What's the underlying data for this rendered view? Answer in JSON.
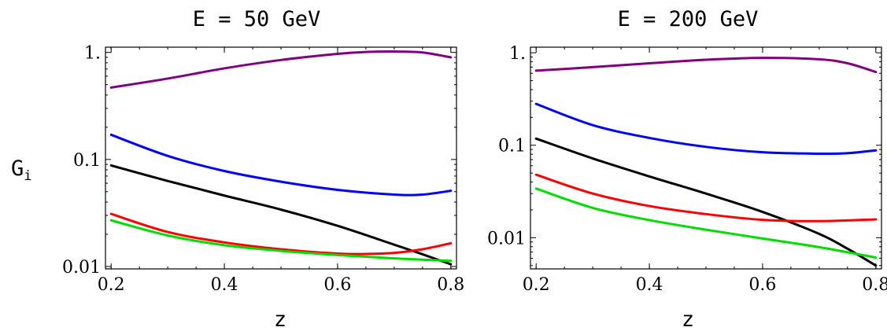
{
  "ylabel": "G",
  "ylabel_sub": "i",
  "chart_data": [
    {
      "type": "line",
      "title": "E = 50 GeV",
      "xlabel": "z",
      "ylabel": "Gi",
      "yscale": "log",
      "xlim": [
        0.19,
        0.81
      ],
      "ylim": [
        0.0095,
        1.12
      ],
      "xticks": [
        0.2,
        0.4,
        0.6,
        0.8
      ],
      "xtick_labels": [
        "0.2",
        "0.4",
        "0.6",
        "0.8"
      ],
      "yticks": [
        0.01,
        0.1,
        1.0
      ],
      "ytick_labels": [
        "0.01",
        "0.1",
        "1."
      ],
      "grid": false,
      "series": [
        {
          "color": "#800080",
          "x": [
            0.2,
            0.3,
            0.4,
            0.5,
            0.6,
            0.65,
            0.7,
            0.75,
            0.8
          ],
          "y": [
            0.47,
            0.57,
            0.71,
            0.85,
            0.97,
            1.01,
            1.02,
            1.0,
            0.9
          ]
        },
        {
          "color": "#0000ff",
          "x": [
            0.2,
            0.3,
            0.4,
            0.5,
            0.6,
            0.7,
            0.75,
            0.8
          ],
          "y": [
            0.17,
            0.108,
            0.078,
            0.062,
            0.052,
            0.047,
            0.047,
            0.051
          ]
        },
        {
          "color": "#000000",
          "x": [
            0.2,
            0.3,
            0.4,
            0.5,
            0.6,
            0.7,
            0.75,
            0.8
          ],
          "y": [
            0.088,
            0.063,
            0.046,
            0.034,
            0.024,
            0.016,
            0.013,
            0.0105
          ]
        },
        {
          "color": "#ff0000",
          "x": [
            0.2,
            0.3,
            0.4,
            0.5,
            0.6,
            0.65,
            0.7,
            0.75,
            0.8
          ],
          "y": [
            0.031,
            0.021,
            0.0168,
            0.0145,
            0.0132,
            0.0131,
            0.0134,
            0.0145,
            0.0165
          ]
        },
        {
          "color": "#00dd00",
          "x": [
            0.2,
            0.3,
            0.4,
            0.5,
            0.6,
            0.7,
            0.8
          ],
          "y": [
            0.027,
            0.0195,
            0.0158,
            0.014,
            0.0128,
            0.0119,
            0.0113
          ]
        }
      ]
    },
    {
      "type": "line",
      "title": "E = 200 GeV",
      "xlabel": "z",
      "ylabel": "",
      "yscale": "log",
      "xlim": [
        0.19,
        0.81
      ],
      "ylim": [
        0.0046,
        1.15
      ],
      "xticks": [
        0.2,
        0.4,
        0.6,
        0.8
      ],
      "xtick_labels": [
        "0.2",
        "0.4",
        "0.6",
        "0.8"
      ],
      "yticks": [
        0.01,
        0.1,
        1.0
      ],
      "ytick_labels": [
        "0.01",
        "0.1",
        "1."
      ],
      "grid": false,
      "series": [
        {
          "color": "#800080",
          "x": [
            0.2,
            0.3,
            0.4,
            0.5,
            0.6,
            0.7,
            0.75,
            0.8
          ],
          "y": [
            0.64,
            0.7,
            0.77,
            0.84,
            0.88,
            0.85,
            0.77,
            0.62
          ]
        },
        {
          "color": "#0000ff",
          "x": [
            0.2,
            0.3,
            0.4,
            0.5,
            0.6,
            0.7,
            0.75,
            0.8
          ],
          "y": [
            0.28,
            0.165,
            0.12,
            0.096,
            0.084,
            0.081,
            0.082,
            0.088
          ]
        },
        {
          "color": "#000000",
          "x": [
            0.2,
            0.3,
            0.4,
            0.5,
            0.6,
            0.7,
            0.75,
            0.8
          ],
          "y": [
            0.118,
            0.072,
            0.046,
            0.03,
            0.019,
            0.011,
            0.0076,
            0.005
          ]
        },
        {
          "color": "#ff0000",
          "x": [
            0.2,
            0.3,
            0.4,
            0.5,
            0.6,
            0.7,
            0.8
          ],
          "y": [
            0.048,
            0.03,
            0.022,
            0.018,
            0.0156,
            0.0151,
            0.0158
          ]
        },
        {
          "color": "#00dd00",
          "x": [
            0.2,
            0.3,
            0.4,
            0.5,
            0.6,
            0.7,
            0.8
          ],
          "y": [
            0.034,
            0.021,
            0.0155,
            0.0122,
            0.0098,
            0.0079,
            0.0061
          ]
        }
      ]
    }
  ]
}
